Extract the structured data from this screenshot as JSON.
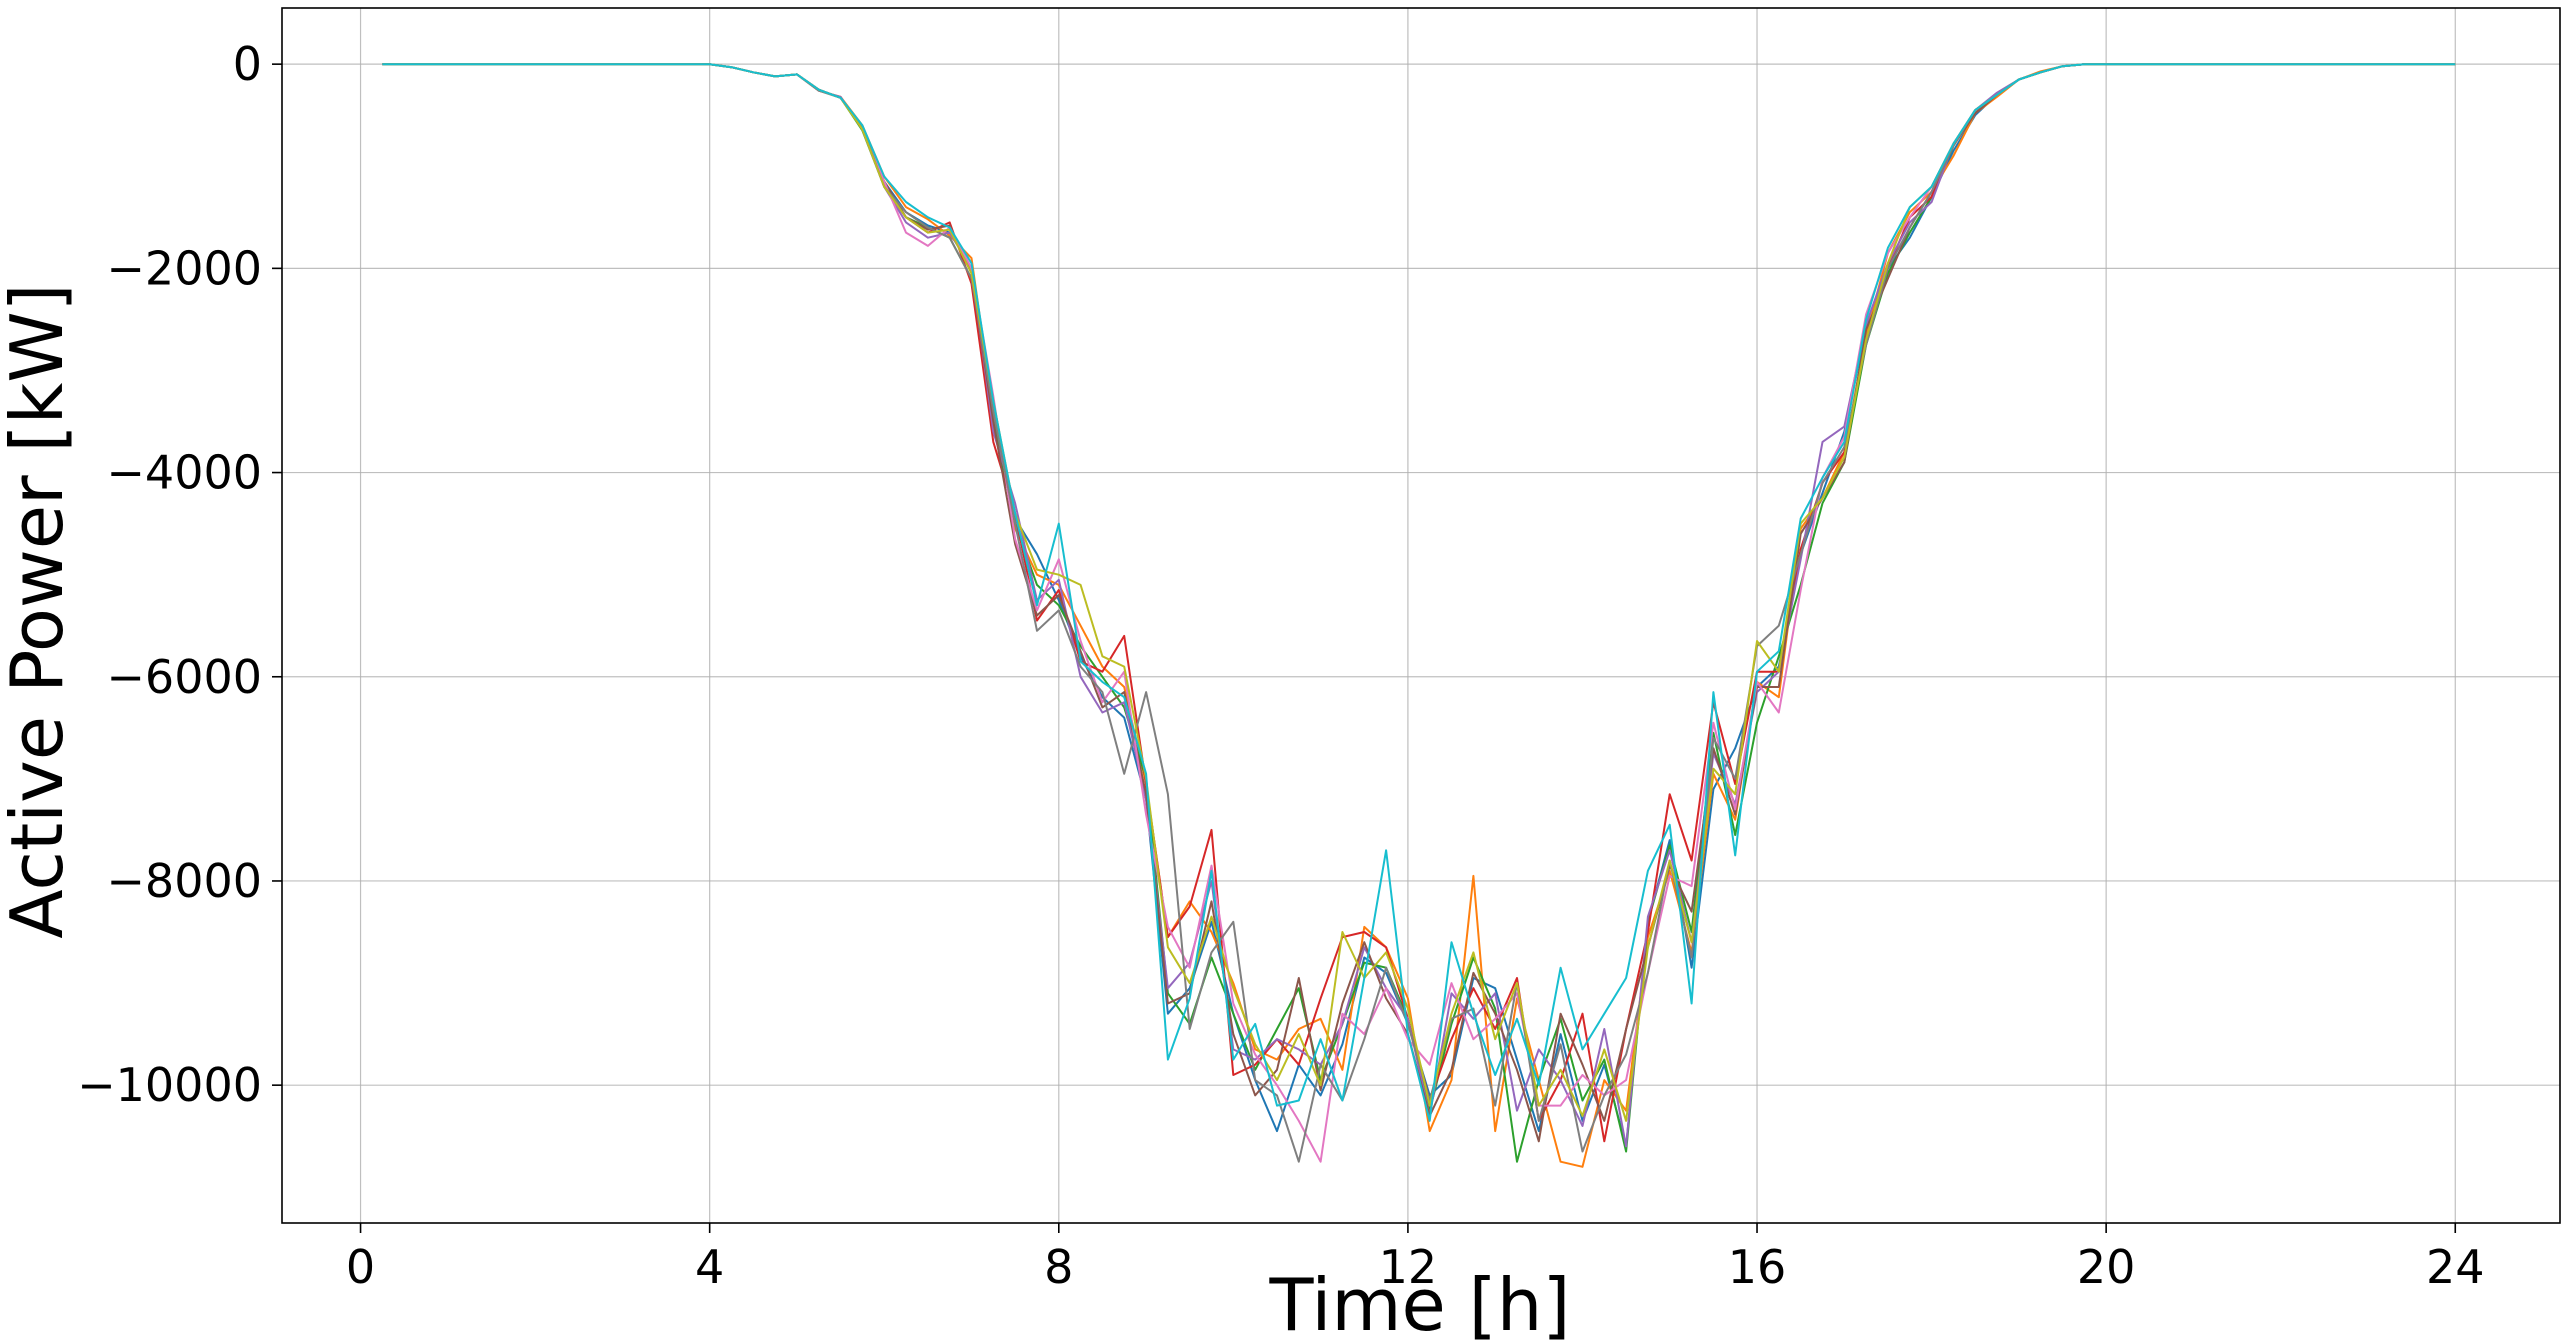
{
  "chart_data": {
    "type": "line",
    "title": "",
    "xlabel": "Time [h]",
    "ylabel": "Active Power [kW]",
    "xlim": [
      -0.9,
      25.2
    ],
    "ylim": [
      -11350,
      550
    ],
    "x_ticks": [
      0,
      4,
      8,
      12,
      16,
      20,
      24
    ],
    "x_tick_labels": [
      "0",
      "4",
      "8",
      "12",
      "16",
      "20",
      "24"
    ],
    "y_ticks": [
      0,
      -2000,
      -4000,
      -6000,
      -8000,
      -10000
    ],
    "y_tick_labels": [
      "0",
      "−2000",
      "−4000",
      "−6000",
      "−8000",
      "−10000"
    ],
    "grid": true,
    "legend": "none",
    "x": [
      0.25,
      0.5,
      0.75,
      1,
      1.25,
      1.5,
      1.75,
      2,
      2.25,
      2.5,
      2.75,
      3,
      3.25,
      3.5,
      3.75,
      4,
      4.25,
      4.5,
      4.75,
      5,
      5.25,
      5.5,
      5.75,
      6,
      6.25,
      6.5,
      6.75,
      7,
      7.25,
      7.5,
      7.75,
      8,
      8.25,
      8.5,
      8.75,
      9,
      9.25,
      9.5,
      9.75,
      10,
      10.25,
      10.5,
      10.75,
      11,
      11.25,
      11.5,
      11.75,
      12,
      12.25,
      12.5,
      12.75,
      13,
      13.25,
      13.5,
      13.75,
      14,
      14.25,
      14.5,
      14.75,
      15,
      15.25,
      15.5,
      15.75,
      16,
      16.25,
      16.5,
      16.75,
      17,
      17.25,
      17.5,
      17.75,
      18,
      18.25,
      18.5,
      18.75,
      19,
      19.25,
      19.5,
      19.75,
      20,
      20.25,
      20.5,
      20.75,
      21,
      21.25,
      21.5,
      21.75,
      22,
      22.25,
      22.5,
      22.75,
      23,
      23.25,
      23.5,
      23.75,
      24
    ],
    "series": [
      {
        "color": "#1f77b4",
        "values": [
          0,
          0,
          0,
          0,
          0,
          0,
          0,
          0,
          0,
          0,
          0,
          0,
          0,
          0,
          0,
          0,
          -30,
          -80,
          -120,
          -100,
          -250,
          -330,
          -620,
          -1150,
          -1450,
          -1580,
          -1650,
          -2000,
          -3300,
          -4450,
          -4800,
          -5250,
          -5800,
          -6200,
          -6400,
          -7200,
          -9300,
          -9050,
          -8400,
          -9300,
          -9950,
          -10450,
          -9800,
          -10100,
          -9600,
          -8750,
          -8900,
          -9400,
          -10100,
          -9900,
          -8950,
          -9050,
          -9750,
          -10450,
          -9500,
          -10350,
          -9800,
          -10600,
          -8400,
          -7600,
          -8850,
          -7100,
          -6700,
          -6100,
          -5900,
          -4800,
          -4200,
          -3600,
          -2600,
          -2000,
          -1700,
          -1300,
          -850,
          -500,
          -300,
          -150,
          -80,
          -20,
          0,
          0,
          0,
          0,
          0,
          0,
          0,
          0,
          0,
          0,
          0,
          0,
          0,
          0,
          0,
          0,
          0,
          0
        ]
      },
      {
        "color": "#ff7f0e",
        "values": [
          0,
          0,
          0,
          0,
          0,
          0,
          0,
          0,
          0,
          0,
          0,
          0,
          0,
          0,
          0,
          0,
          -30,
          -80,
          -120,
          -100,
          -260,
          -320,
          -600,
          -1100,
          -1400,
          -1520,
          -1680,
          -1900,
          -3400,
          -4550,
          -5000,
          -5100,
          -5500,
          -5900,
          -6100,
          -7050,
          -8550,
          -8200,
          -8500,
          -9000,
          -9650,
          -9750,
          -9450,
          -9350,
          -9850,
          -8450,
          -8650,
          -9150,
          -10450,
          -9950,
          -7950,
          -10450,
          -9150,
          -9950,
          -10750,
          -10800,
          -9950,
          -10250,
          -8550,
          -7900,
          -8700,
          -6950,
          -7400,
          -6050,
          -6200,
          -4550,
          -4250,
          -3800,
          -2650,
          -1850,
          -1450,
          -1250,
          -900,
          -480,
          -320,
          -150,
          -70,
          -20,
          0,
          0,
          0,
          0,
          0,
          0,
          0,
          0,
          0,
          0,
          0,
          0,
          0,
          0,
          0,
          0,
          0,
          0
        ]
      },
      {
        "color": "#2ca02c",
        "values": [
          0,
          0,
          0,
          0,
          0,
          0,
          0,
          0,
          0,
          0,
          0,
          0,
          0,
          0,
          0,
          0,
          -30,
          -80,
          -120,
          -100,
          -250,
          -330,
          -650,
          -1200,
          -1500,
          -1600,
          -1700,
          -2100,
          -3500,
          -4500,
          -5100,
          -5300,
          -5700,
          -6000,
          -6300,
          -7000,
          -9100,
          -9400,
          -8750,
          -9300,
          -9850,
          -9450,
          -9050,
          -9950,
          -9400,
          -8800,
          -8850,
          -9350,
          -10250,
          -9400,
          -8750,
          -9250,
          -10750,
          -9950,
          -9350,
          -10150,
          -9750,
          -10650,
          -8400,
          -7650,
          -8500,
          -6550,
          -7550,
          -6450,
          -5800,
          -5100,
          -4300,
          -3900,
          -2750,
          -2050,
          -1650,
          -1300,
          -800,
          -450,
          -300,
          -150,
          -80,
          -20,
          0,
          0,
          0,
          0,
          0,
          0,
          0,
          0,
          0,
          0,
          0,
          0,
          0,
          0,
          0,
          0,
          0,
          0
        ]
      },
      {
        "color": "#d62728",
        "values": [
          0,
          0,
          0,
          0,
          0,
          0,
          0,
          0,
          0,
          0,
          0,
          0,
          0,
          0,
          0,
          0,
          -30,
          -80,
          -120,
          -100,
          -250,
          -330,
          -630,
          -1200,
          -1500,
          -1650,
          -1550,
          -2150,
          -3700,
          -4400,
          -5450,
          -5150,
          -5850,
          -5950,
          -5600,
          -7050,
          -8550,
          -8250,
          -7500,
          -9900,
          -9800,
          -9550,
          -9800,
          -9150,
          -8550,
          -8500,
          -8650,
          -9350,
          -10150,
          -9550,
          -9050,
          -9450,
          -8950,
          -10350,
          -9950,
          -9300,
          -10550,
          -9450,
          -8500,
          -7150,
          -7800,
          -6250,
          -7050,
          -5950,
          -5950,
          -4750,
          -4100,
          -3800,
          -2700,
          -2000,
          -1500,
          -1300,
          -780,
          -480,
          -300,
          -150,
          -80,
          -20,
          0,
          0,
          0,
          0,
          0,
          0,
          0,
          0,
          0,
          0,
          0,
          0,
          0,
          0,
          0,
          0,
          0,
          0
        ]
      },
      {
        "color": "#9467bd",
        "values": [
          0,
          0,
          0,
          0,
          0,
          0,
          0,
          0,
          0,
          0,
          0,
          0,
          0,
          0,
          0,
          0,
          -30,
          -80,
          -120,
          -100,
          -260,
          -320,
          -640,
          -1200,
          -1550,
          -1700,
          -1650,
          -2000,
          -3600,
          -4300,
          -5250,
          -5050,
          -6000,
          -6350,
          -6250,
          -7200,
          -9050,
          -8800,
          -8000,
          -9650,
          -9750,
          -9550,
          -9650,
          -9800,
          -9400,
          -8650,
          -9050,
          -9350,
          -10300,
          -9100,
          -9350,
          -9100,
          -10250,
          -9650,
          -9950,
          -10400,
          -9450,
          -10600,
          -8350,
          -7700,
          -8600,
          -6750,
          -7250,
          -6150,
          -5950,
          -4850,
          -3700,
          -3550,
          -2550,
          -1950,
          -1550,
          -1350,
          -780,
          -450,
          -280,
          -150,
          -80,
          -20,
          0,
          0,
          0,
          0,
          0,
          0,
          0,
          0,
          0,
          0,
          0,
          0,
          0,
          0,
          0,
          0,
          0,
          0
        ]
      },
      {
        "color": "#8c564b",
        "values": [
          0,
          0,
          0,
          0,
          0,
          0,
          0,
          0,
          0,
          0,
          0,
          0,
          0,
          0,
          0,
          0,
          -30,
          -80,
          -120,
          -100,
          -250,
          -330,
          -620,
          -1150,
          -1500,
          -1620,
          -1580,
          -2050,
          -3500,
          -4700,
          -5400,
          -5200,
          -5750,
          -6300,
          -6150,
          -7150,
          -9200,
          -9100,
          -8200,
          -9500,
          -10100,
          -9850,
          -8950,
          -10050,
          -9200,
          -8600,
          -9150,
          -9500,
          -10300,
          -9850,
          -8900,
          -9300,
          -9850,
          -10550,
          -9300,
          -9800,
          -10350,
          -9450,
          -8650,
          -7850,
          -8300,
          -6700,
          -7350,
          -6100,
          -6100,
          -4600,
          -4250,
          -3900,
          -2600,
          -2100,
          -1600,
          -1250,
          -800,
          -480,
          -300,
          -150,
          -80,
          -20,
          0,
          0,
          0,
          0,
          0,
          0,
          0,
          0,
          0,
          0,
          0,
          0,
          0,
          0,
          0,
          0,
          0,
          0
        ]
      },
      {
        "color": "#e377c2",
        "values": [
          0,
          0,
          0,
          0,
          0,
          0,
          0,
          0,
          0,
          0,
          0,
          0,
          0,
          0,
          0,
          0,
          -30,
          -80,
          -120,
          -100,
          -250,
          -330,
          -610,
          -1150,
          -1650,
          -1780,
          -1600,
          -2000,
          -3250,
          -4650,
          -5350,
          -4850,
          -5650,
          -6250,
          -5950,
          -7350,
          -8450,
          -8850,
          -7850,
          -9200,
          -9700,
          -10000,
          -10350,
          -10750,
          -9300,
          -9500,
          -9050,
          -9550,
          -9800,
          -9000,
          -9550,
          -9350,
          -9100,
          -10200,
          -10200,
          -9900,
          -10100,
          -9950,
          -8900,
          -7950,
          -8050,
          -6450,
          -7300,
          -6050,
          -6350,
          -5150,
          -4050,
          -3650,
          -2450,
          -1850,
          -1500,
          -1200,
          -780,
          -450,
          -300,
          -150,
          -80,
          -20,
          0,
          0,
          0,
          0,
          0,
          0,
          0,
          0,
          0,
          0,
          0,
          0,
          0,
          0,
          0,
          0,
          0,
          0
        ]
      },
      {
        "color": "#7f7f7f",
        "values": [
          0,
          0,
          0,
          0,
          0,
          0,
          0,
          0,
          0,
          0,
          0,
          0,
          0,
          0,
          0,
          0,
          -30,
          -80,
          -120,
          -100,
          -260,
          -330,
          -620,
          -1200,
          -1450,
          -1600,
          -1700,
          -2100,
          -3400,
          -4500,
          -5550,
          -5350,
          -5900,
          -6150,
          -6950,
          -6150,
          -7150,
          -9450,
          -8700,
          -8400,
          -9950,
          -10100,
          -10750,
          -9800,
          -10150,
          -9550,
          -8850,
          -9400,
          -10150,
          -9350,
          -9250,
          -10200,
          -9000,
          -10350,
          -9600,
          -10650,
          -10100,
          -9700,
          -8900,
          -7800,
          -8750,
          -6600,
          -7000,
          -5700,
          -5500,
          -4800,
          -4100,
          -3750,
          -2750,
          -2000,
          -1600,
          -1250,
          -800,
          -450,
          -300,
          -150,
          -80,
          -20,
          0,
          0,
          0,
          0,
          0,
          0,
          0,
          0,
          0,
          0,
          0,
          0,
          0,
          0,
          0,
          0,
          0,
          0
        ]
      },
      {
        "color": "#bcbd22",
        "values": [
          0,
          0,
          0,
          0,
          0,
          0,
          0,
          0,
          0,
          0,
          0,
          0,
          0,
          0,
          0,
          0,
          -30,
          -80,
          -120,
          -100,
          -250,
          -330,
          -640,
          -1200,
          -1500,
          -1650,
          -1620,
          -2050,
          -3300,
          -4400,
          -4950,
          -5000,
          -5100,
          -5800,
          -5900,
          -7000,
          -8650,
          -9000,
          -8350,
          -9050,
          -9600,
          -9950,
          -9500,
          -10000,
          -8500,
          -8950,
          -8700,
          -9250,
          -10200,
          -9300,
          -8700,
          -9550,
          -9000,
          -10200,
          -9850,
          -10300,
          -9650,
          -10350,
          -8650,
          -7800,
          -8600,
          -6900,
          -7150,
          -5650,
          -5950,
          -4500,
          -4250,
          -3850,
          -2700,
          -1950,
          -1400,
          -1200,
          -780,
          -450,
          -300,
          -150,
          -80,
          -20,
          0,
          0,
          0,
          0,
          0,
          0,
          0,
          0,
          0,
          0,
          0,
          0,
          0,
          0,
          0,
          0,
          0,
          0
        ]
      },
      {
        "color": "#17becf",
        "values": [
          0,
          0,
          0,
          0,
          0,
          0,
          0,
          0,
          0,
          0,
          0,
          0,
          0,
          0,
          0,
          0,
          -30,
          -80,
          -120,
          -100,
          -250,
          -330,
          -600,
          -1100,
          -1350,
          -1500,
          -1600,
          -1950,
          -3300,
          -4400,
          -5300,
          -4500,
          -5850,
          -6050,
          -6200,
          -6950,
          -9750,
          -9150,
          -7900,
          -9750,
          -9400,
          -10200,
          -10150,
          -9550,
          -10150,
          -8950,
          -7700,
          -9500,
          -10350,
          -8600,
          -9300,
          -9900,
          -9350,
          -10000,
          -8850,
          -9650,
          -9300,
          -8950,
          -7900,
          -7450,
          -9200,
          -6150,
          -7750,
          -5950,
          -5750,
          -4450,
          -4050,
          -3700,
          -2500,
          -1800,
          -1400,
          -1200,
          -780,
          -450,
          -300,
          -150,
          -80,
          -20,
          0,
          0,
          0,
          0,
          0,
          0,
          0,
          0,
          0,
          0,
          0,
          0,
          0,
          0,
          0,
          0,
          0,
          0
        ]
      }
    ]
  }
}
